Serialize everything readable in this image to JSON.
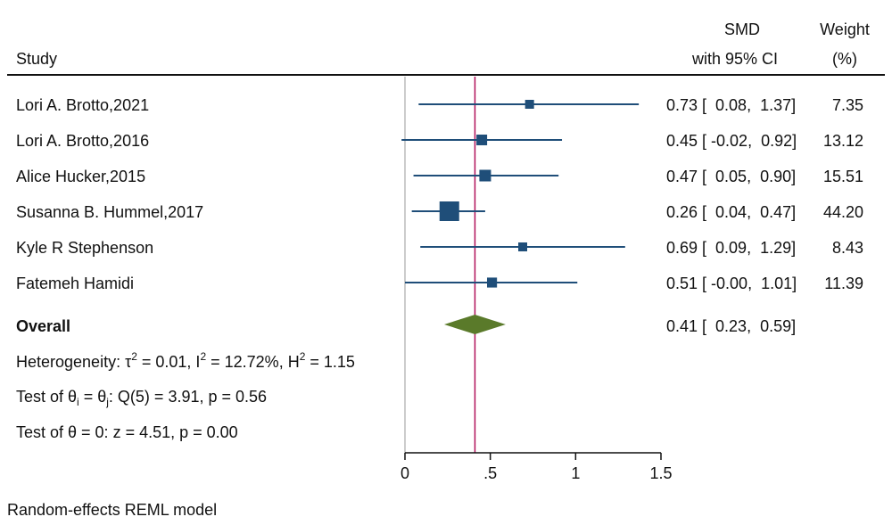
{
  "chart_data": {
    "type": "forest",
    "headers": {
      "study": "Study",
      "effect_line1": "SMD",
      "effect_line2": "with 95% CI",
      "weight_line1": "Weight",
      "weight_line2": "(%)"
    },
    "studies": [
      {
        "name": "Lori A. Brotto,2021",
        "smd": 0.73,
        "lo": 0.08,
        "hi": 1.37,
        "ci_text": "0.73 [  0.08,  1.37]",
        "weight": 7.35,
        "weight_text": "7.35"
      },
      {
        "name": "Lori A. Brotto,2016",
        "smd": 0.45,
        "lo": -0.02,
        "hi": 0.92,
        "ci_text": "0.45 [ -0.02,  0.92]",
        "weight": 13.12,
        "weight_text": "13.12"
      },
      {
        "name": "Alice Hucker,2015",
        "smd": 0.47,
        "lo": 0.05,
        "hi": 0.9,
        "ci_text": "0.47 [  0.05,  0.90]",
        "weight": 15.51,
        "weight_text": "15.51"
      },
      {
        "name": "Susanna B. Hummel,2017",
        "smd": 0.26,
        "lo": 0.04,
        "hi": 0.47,
        "ci_text": "0.26 [  0.04,  0.47]",
        "weight": 44.2,
        "weight_text": "44.20"
      },
      {
        "name": "Kyle R Stephenson",
        "smd": 0.69,
        "lo": 0.09,
        "hi": 1.29,
        "ci_text": "0.69 [  0.09,  1.29]",
        "weight": 8.43,
        "weight_text": "8.43"
      },
      {
        "name": "Fatemeh Hamidi",
        "smd": 0.51,
        "lo": -0.0,
        "hi": 1.01,
        "ci_text": "0.51 [ -0.00,  1.01]",
        "weight": 11.39,
        "weight_text": "11.39"
      }
    ],
    "overall": {
      "label": "Overall",
      "smd": 0.41,
      "lo": 0.23,
      "hi": 0.59,
      "ci_text": "0.41 [  0.23,  0.59]"
    },
    "stats": {
      "heterogeneity": {
        "prefix": "Heterogeneity: τ",
        "s1": "2",
        "mid1": " = 0.01, I",
        "s2": "2",
        "mid2": " = 12.72%, H",
        "s3": "2",
        "end": " = 1.15"
      },
      "test_equal": {
        "prefix": "Test of θ",
        "sub1": "i",
        "mid": " = θ",
        "sub2": "j",
        "end": ": Q(5) = 3.91, p = 0.56"
      },
      "test_zero": "Test of θ = 0: z = 4.51, p = 0.00"
    },
    "x_axis": {
      "ticks": [
        0,
        0.5,
        1,
        1.5
      ],
      "tick_labels": [
        "0",
        ".5",
        "1",
        "1.5"
      ],
      "range": [
        0,
        1.5
      ]
    },
    "null_line": 0,
    "model_note": "Random-effects REML model",
    "colors": {
      "marker": "#1f4e79",
      "ci_line": "#1f4e79",
      "diamond": "#5a7a2a",
      "overall_line": "#b0105a",
      "axis": "#111111",
      "null_line": "#999999"
    }
  }
}
